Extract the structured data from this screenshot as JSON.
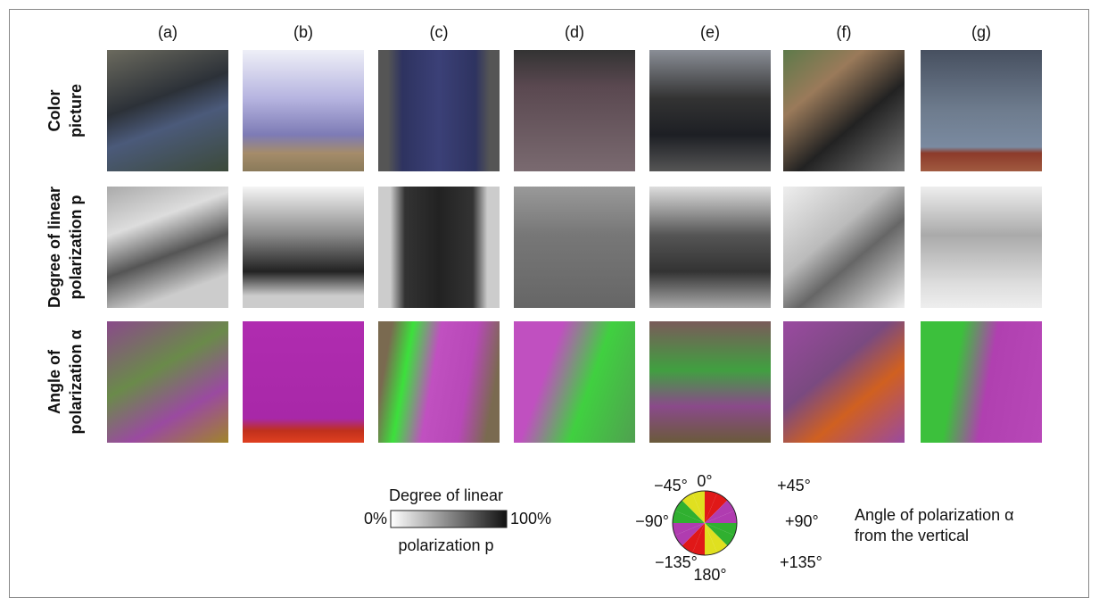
{
  "columns": [
    "(a)",
    "(b)",
    "(c)",
    "(d)",
    "(e)",
    "(f)",
    "(g)"
  ],
  "rows": [
    [
      "Color",
      "picture"
    ],
    [
      "Degree of linear",
      "polarization p"
    ],
    [
      "Angle of",
      "polarization α"
    ]
  ],
  "gray_legend": {
    "title": "Degree of linear",
    "min": "0%",
    "max": "100%",
    "subtitle": "polarization p"
  },
  "angle_legend": {
    "labels": {
      "top": "0°",
      "top_left": "−45°",
      "top_right": "+45°",
      "left": "−90°",
      "right": "+90°",
      "bottom_left": "−135°",
      "bottom_right": "+135°",
      "bottom": "180°"
    },
    "title": [
      "Angle of polarization α",
      "from the vertical"
    ]
  }
}
